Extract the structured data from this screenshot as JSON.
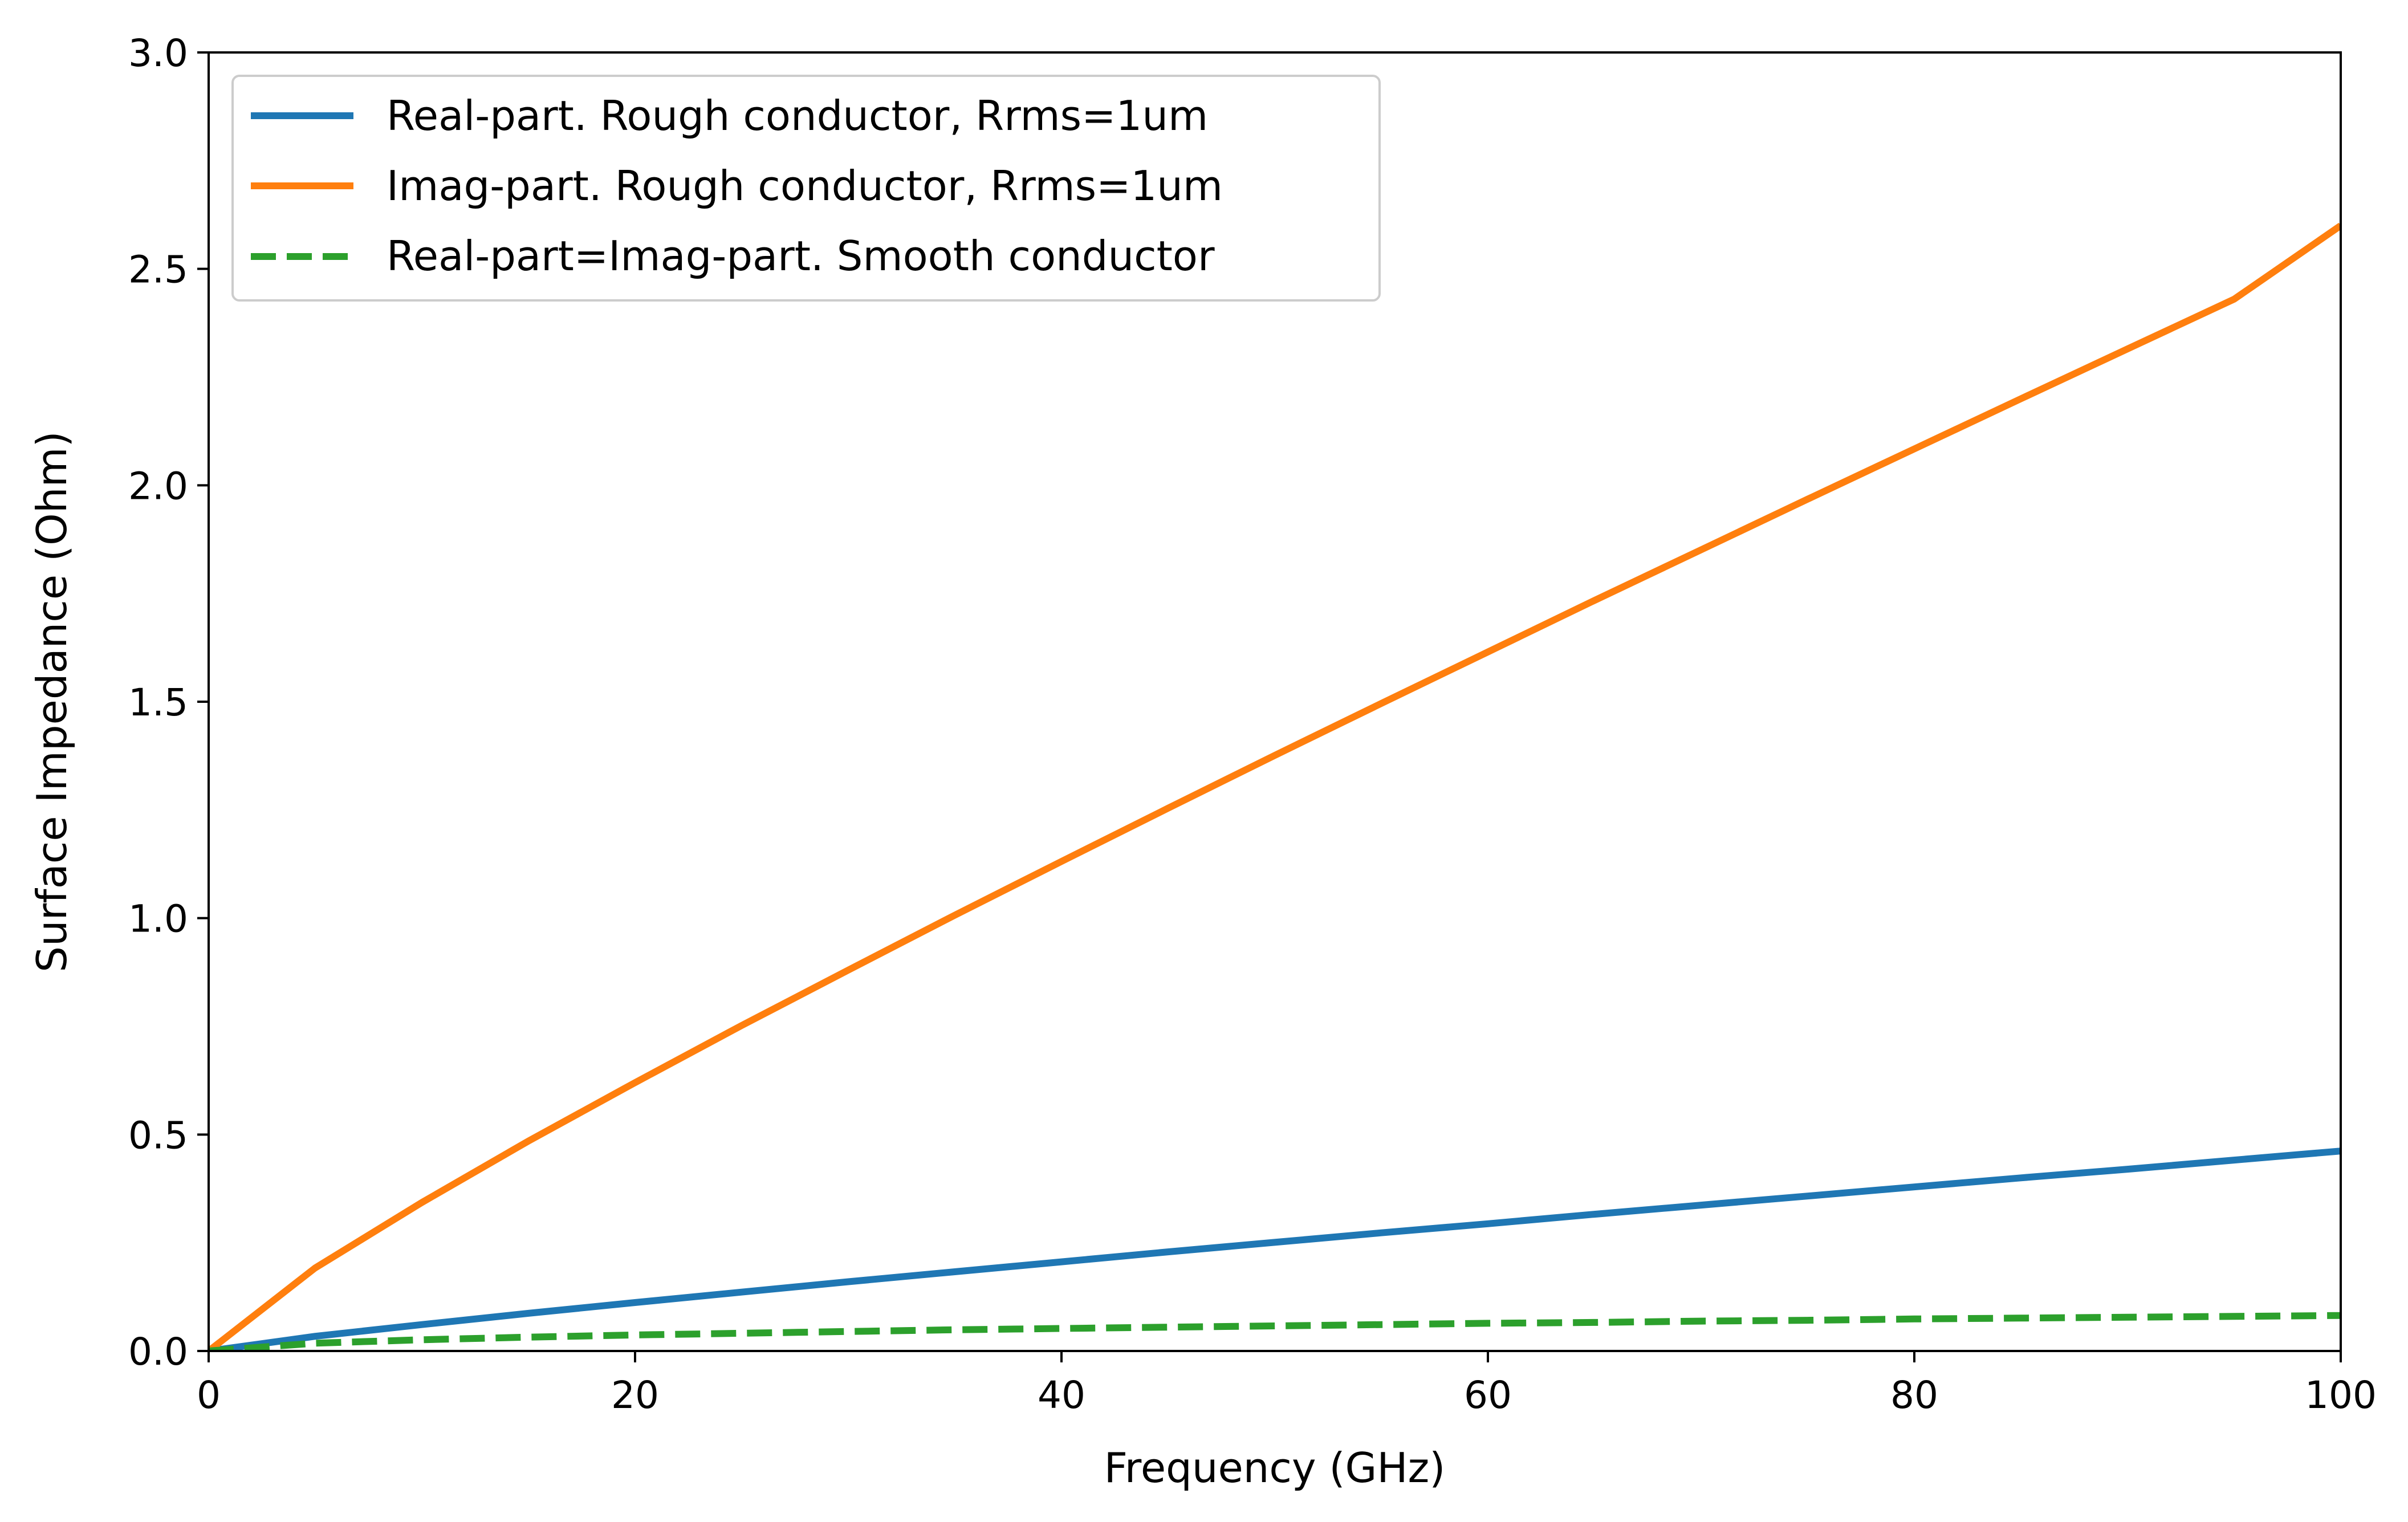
{
  "chart_data": {
    "type": "line",
    "xlabel": "Frequency (GHz)",
    "ylabel": "Surface Impedance (Ohm)",
    "xlim": [
      0,
      100
    ],
    "ylim": [
      0,
      3.0
    ],
    "xticks": [
      0,
      20,
      40,
      60,
      80,
      100
    ],
    "xtick_labels": [
      "0",
      "20",
      "40",
      "60",
      "80",
      "100"
    ],
    "yticks": [
      0,
      0.5,
      1.0,
      1.5,
      2.0,
      2.5,
      3.0
    ],
    "ytick_labels": [
      "0.0",
      "0.5",
      "1.0",
      "1.5",
      "2.0",
      "2.5",
      "3.0"
    ],
    "grid": false,
    "legend_position": "top-left",
    "x": [
      0,
      5,
      10,
      15,
      20,
      25,
      30,
      35,
      40,
      45,
      50,
      55,
      60,
      65,
      70,
      75,
      80,
      85,
      90,
      95,
      100
    ],
    "series": [
      {
        "name": "Real-part. Rough conductor, Rrms=1um",
        "color": "#1f77b4",
        "style": "solid",
        "values": [
          0.0,
          0.034,
          0.061,
          0.087,
          0.112,
          0.136,
          0.16,
          0.183,
          0.206,
          0.229,
          0.251,
          0.273,
          0.294,
          0.316,
          0.337,
          0.358,
          0.379,
          0.4,
          0.42,
          0.441,
          0.462
        ]
      },
      {
        "name": "Imag-part. Rough conductor, Rrms=1um",
        "color": "#ff7f0e",
        "style": "solid",
        "values": [
          0.0,
          0.192,
          0.343,
          0.485,
          0.62,
          0.752,
          0.88,
          1.007,
          1.131,
          1.254,
          1.376,
          1.496,
          1.615,
          1.734,
          1.851,
          1.968,
          2.084,
          2.2,
          2.315,
          2.43,
          2.6
        ]
      },
      {
        "name": "Real-part=Imag-part. Smooth conductor",
        "color": "#2ca02c",
        "style": "dashed",
        "values": [
          0.0,
          0.018,
          0.026,
          0.032,
          0.037,
          0.041,
          0.045,
          0.049,
          0.052,
          0.055,
          0.058,
          0.061,
          0.064,
          0.066,
          0.069,
          0.071,
          0.074,
          0.076,
          0.078,
          0.08,
          0.082
        ]
      }
    ]
  }
}
